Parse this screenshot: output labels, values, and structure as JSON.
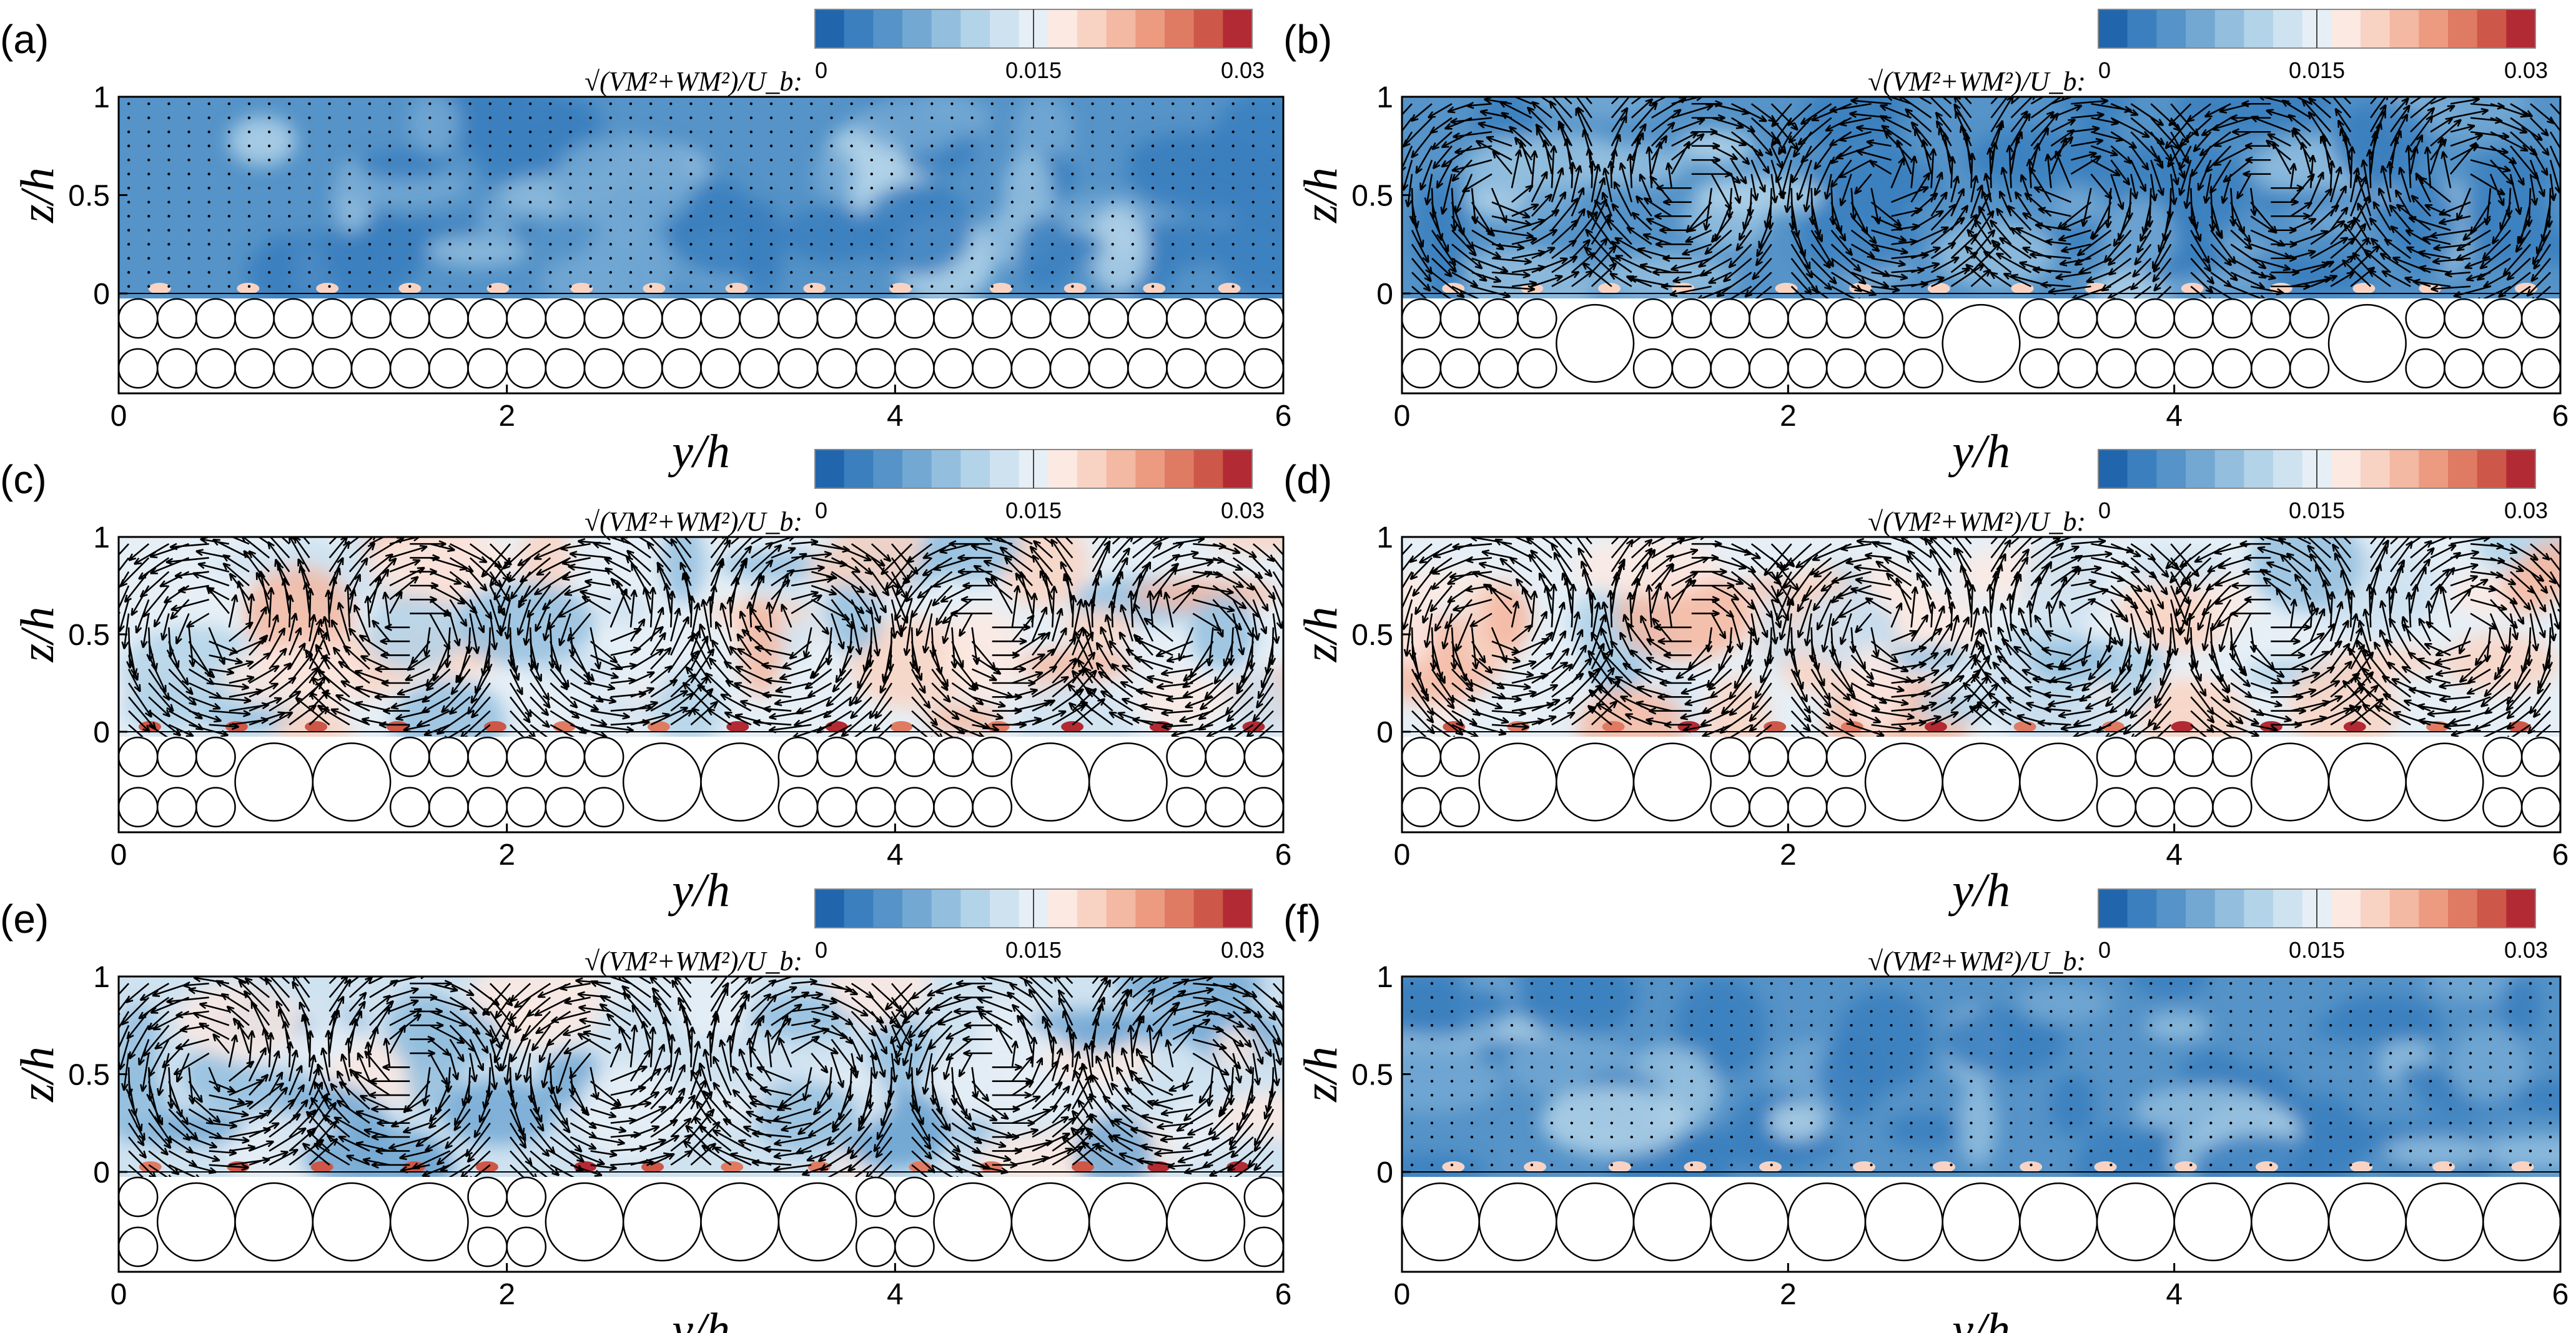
{
  "figure": {
    "colormap": [
      "#2166ac",
      "#3b7fbe",
      "#5593c8",
      "#73a8d3",
      "#93bede",
      "#b3d3e9",
      "#cfe2f0",
      "#e6eff6",
      "#fbe9e2",
      "#f8d3c3",
      "#f3b9a2",
      "#ec9b81",
      "#e07b63",
      "#cd5748",
      "#b22a33"
    ],
    "colorbar": {
      "label": "√(VM²+WM²)/U_b:",
      "ticks": [
        "0",
        "0.015",
        "0.03"
      ]
    },
    "cylinder_stroke": "#000000",
    "arrow_color": "#000000"
  },
  "chart_data": [
    {
      "panel": "(a)",
      "type": "heatmap",
      "xlabel": "y/h",
      "ylabel": "z/h",
      "xlim": [
        0,
        6
      ],
      "ylim": [
        -0.4,
        1
      ],
      "xticks": [
        "0",
        "2",
        "4",
        "6"
      ],
      "yticks": [
        "0",
        "0.5",
        "1"
      ],
      "colorbar_range": [
        0,
        0.03
      ],
      "field_level": "low",
      "vectors": "small dots",
      "roughness": {
        "description": "two layers of uniform small spheres",
        "diameter_small": 0.2,
        "large_sphere_centers": []
      }
    },
    {
      "panel": "(b)",
      "type": "heatmap",
      "xlabel": "y/h",
      "ylabel": "z/h",
      "xlim": [
        0,
        6
      ],
      "ylim": [
        -0.4,
        1
      ],
      "xticks": [
        "0",
        "2",
        "4",
        "6"
      ],
      "yticks": [
        "0",
        "0.5",
        "1"
      ],
      "colorbar_range": [
        0,
        0.03
      ],
      "field_level": "low",
      "vectors": "large counter-rotating secondary-flow vortices",
      "roughness": {
        "description": "two layers of small spheres with isolated large spheres",
        "diameter_small": 0.2,
        "diameter_large": 0.4,
        "large_sphere_centers": [
          1.0,
          3.0,
          5.0
        ]
      }
    },
    {
      "panel": "(c)",
      "type": "heatmap",
      "xlabel": "y/h",
      "ylabel": "z/h",
      "xlim": [
        0,
        6
      ],
      "ylim": [
        -0.4,
        1
      ],
      "xticks": [
        "0",
        "2",
        "4",
        "6"
      ],
      "yticks": [
        "0",
        "0.5",
        "1"
      ],
      "colorbar_range": [
        0,
        0.03
      ],
      "field_level": "high",
      "vectors": "large secondary-flow cells",
      "roughness": {
        "description": "small spheres with pairs of large spheres",
        "diameter_small": 0.2,
        "diameter_large": 0.4,
        "large_sphere_centers": [
          0.8,
          1.2,
          2.8,
          3.2,
          4.8,
          5.2
        ]
      }
    },
    {
      "panel": "(d)",
      "type": "heatmap",
      "xlabel": "y/h",
      "ylabel": "z/h",
      "xlim": [
        0,
        6
      ],
      "ylim": [
        -0.4,
        1
      ],
      "xticks": [
        "0",
        "2",
        "4",
        "6"
      ],
      "yticks": [
        "0",
        "0.5",
        "1"
      ],
      "colorbar_range": [
        0,
        0.03
      ],
      "field_level": "high",
      "vectors": "large secondary-flow cells",
      "roughness": {
        "description": "small spheres with triplets of large spheres",
        "diameter_small": 0.2,
        "diameter_large": 0.4,
        "large_sphere_centers": [
          0.6,
          1.0,
          1.4,
          2.6,
          3.0,
          3.4,
          4.6,
          5.0,
          5.4
        ]
      }
    },
    {
      "panel": "(e)",
      "type": "heatmap",
      "xlabel": "y/h",
      "ylabel": "z/h",
      "xlim": [
        0,
        6
      ],
      "ylim": [
        -0.4,
        1
      ],
      "xticks": [
        "0",
        "2",
        "4",
        "6"
      ],
      "yticks": [
        "0",
        "0.5",
        "1"
      ],
      "colorbar_range": [
        0,
        0.03
      ],
      "field_level": "medium",
      "vectors": "secondary-flow cells",
      "roughness": {
        "description": "large spheres with small clusters",
        "diameter_small": 0.2,
        "diameter_large": 0.4,
        "large_sphere_centers": [
          0.4,
          0.8,
          1.2,
          1.6,
          2.4,
          2.8,
          3.2,
          3.6,
          4.4,
          4.8,
          5.2,
          5.6
        ]
      }
    },
    {
      "panel": "(f)",
      "type": "heatmap",
      "xlabel": "y/h",
      "ylabel": "z/h",
      "xlim": [
        0,
        6
      ],
      "ylim": [
        -0.4,
        1
      ],
      "xticks": [
        "0",
        "2",
        "4",
        "6"
      ],
      "yticks": [
        "0",
        "0.5",
        "1"
      ],
      "colorbar_range": [
        0,
        0.03
      ],
      "field_level": "low",
      "vectors": "small dots",
      "roughness": {
        "description": "single layer of uniform large spheres",
        "diameter_small": 0,
        "diameter_large": 0.4,
        "large_sphere_centers": [
          0.2,
          0.6,
          1.0,
          1.4,
          1.8,
          2.2,
          2.6,
          3.0,
          3.4,
          3.8,
          4.2,
          4.6,
          5.0,
          5.4,
          5.8
        ]
      }
    }
  ]
}
